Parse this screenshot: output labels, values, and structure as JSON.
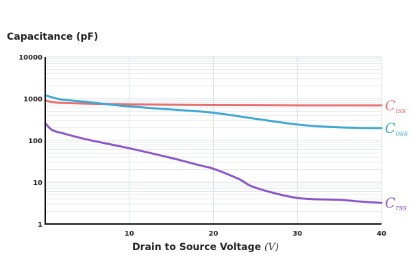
{
  "chart_data": {
    "type": "line",
    "title": "",
    "ylabel": "Capacitance (pF)",
    "xlabel": "Drain to Source Voltage",
    "xlabel_unit": "(V)",
    "xlim": [
      0,
      40
    ],
    "ylim": [
      1,
      10000
    ],
    "yscale": "log",
    "grid": true,
    "x_ticks": [
      "10",
      "20",
      "30",
      "40"
    ],
    "y_ticks": [
      "1",
      "10",
      "100",
      "1000",
      "10000"
    ],
    "legend_placement": "right, inline labels at line ends",
    "series": [
      {
        "name": "C",
        "subscript": "iss",
        "color": "#e8706f",
        "x": [
          0,
          1,
          2,
          5,
          10,
          20,
          30,
          40
        ],
        "values": [
          900,
          820,
          790,
          760,
          730,
          700,
          690,
          690
        ]
      },
      {
        "name": "C",
        "subscript": "oss",
        "color": "#3ea6d3",
        "x": [
          0,
          1,
          2,
          5,
          7,
          10,
          15,
          20,
          25,
          30,
          33,
          37,
          40
        ],
        "values": [
          1200,
          1050,
          950,
          830,
          750,
          650,
          550,
          460,
          330,
          240,
          215,
          200,
          198
        ]
      },
      {
        "name": "C",
        "subscript": "rss",
        "color": "#8a56c9",
        "x": [
          0,
          0.5,
          1,
          2,
          5,
          10,
          15,
          18.5,
          20,
          23,
          25,
          30,
          35,
          37,
          40
        ],
        "values": [
          260,
          200,
          170,
          150,
          105,
          65,
          38,
          25,
          21,
          12,
          7.4,
          4.2,
          3.8,
          3.5,
          3.2
        ]
      }
    ]
  }
}
